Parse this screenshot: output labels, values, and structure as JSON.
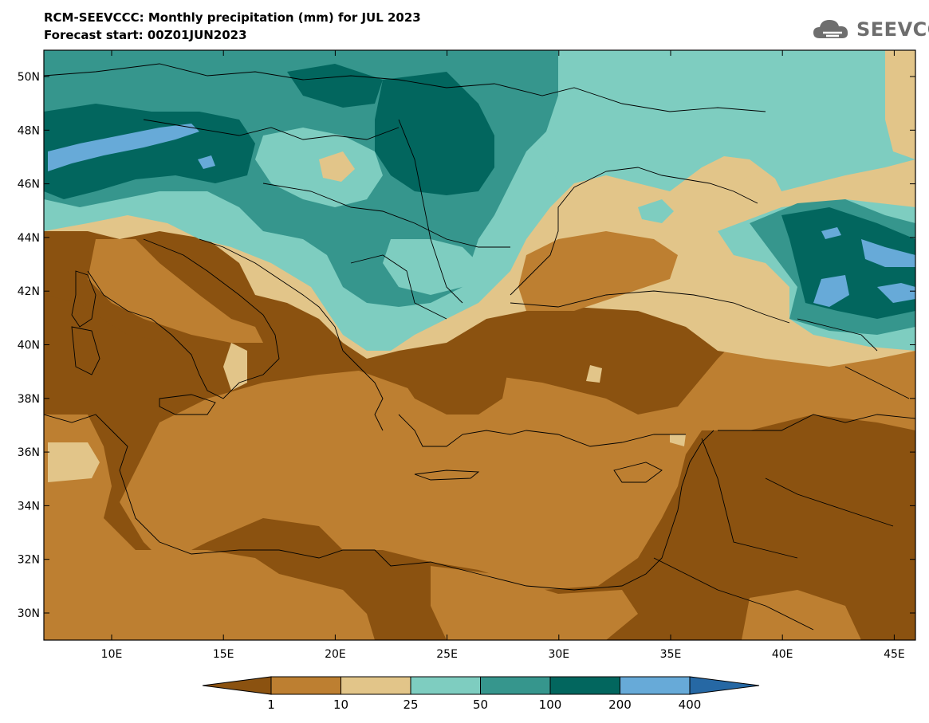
{
  "title": {
    "line1": "RCM-SEEVCCC: Monthly precipitation (mm) for JUL 2023",
    "line2": "Forecast start: 00Z01JUN2023"
  },
  "logo": {
    "text": "SEEVCCC",
    "icon": "cloud-icon"
  },
  "map": {
    "lat_labels": [
      "50N",
      "48N",
      "46N",
      "44N",
      "42N",
      "40N",
      "38N",
      "36N",
      "34N",
      "32N",
      "30N"
    ],
    "lon_labels": [
      "10E",
      "15E",
      "20E",
      "25E",
      "30E",
      "35E",
      "40E",
      "45E"
    ]
  },
  "colorbar": {
    "labels": [
      "1",
      "10",
      "25",
      "50",
      "100",
      "200",
      "400"
    ],
    "colors": [
      "#8b5210",
      "#bd7f31",
      "#e2c589",
      "#7ecdc0",
      "#36968d",
      "#02665e",
      "#67aad8",
      "#2668a4"
    ]
  }
}
